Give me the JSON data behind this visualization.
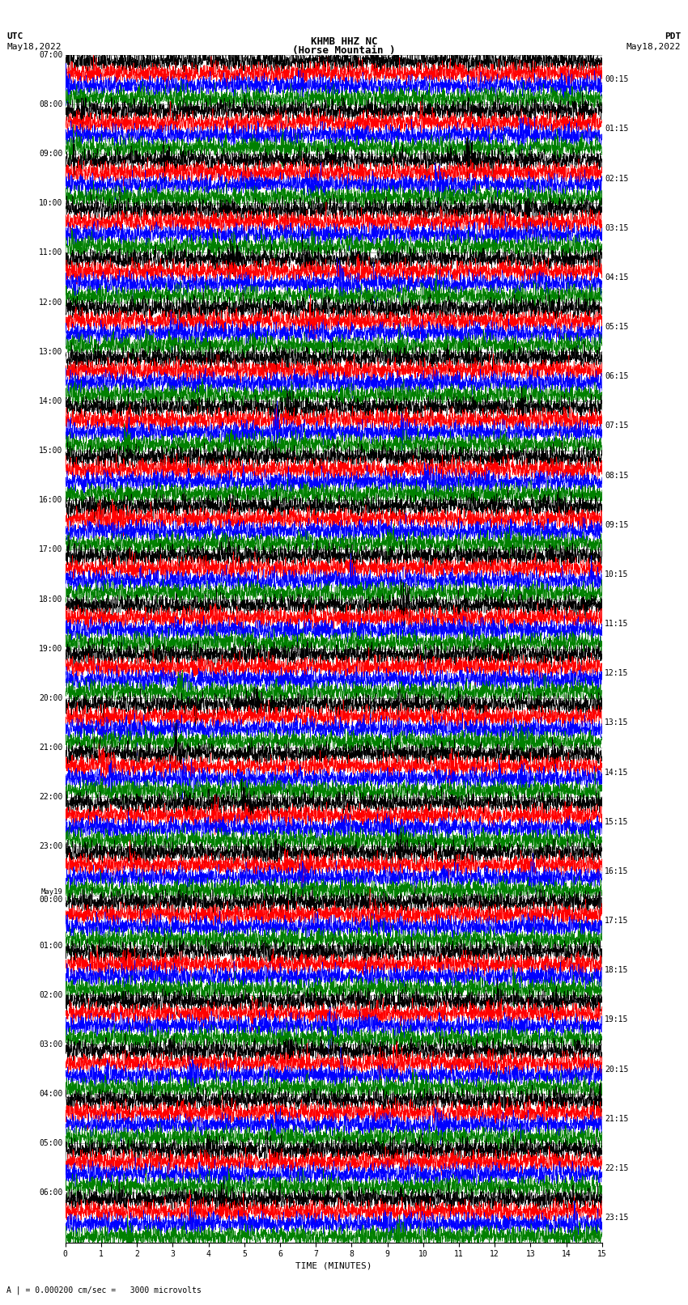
{
  "title_line1": "KHMB HHZ NC",
  "title_line2": "(Horse Mountain )",
  "title_scale": "| = 0.000200 cm/sec",
  "left_label_top": "UTC",
  "left_label_date": "May18,2022",
  "right_label_top": "PDT",
  "right_label_date": "May18,2022",
  "xlabel": "TIME (MINUTES)",
  "bottom_note": "A | = 0.000200 cm/sec =   3000 microvolts",
  "utc_labels": [
    "07:00",
    "08:00",
    "09:00",
    "10:00",
    "11:00",
    "12:00",
    "13:00",
    "14:00",
    "15:00",
    "16:00",
    "17:00",
    "18:00",
    "19:00",
    "20:00",
    "21:00",
    "22:00",
    "23:00",
    "May19\n00:00",
    "01:00",
    "02:00",
    "03:00",
    "04:00",
    "05:00",
    "06:00"
  ],
  "pdt_labels": [
    "00:15",
    "01:15",
    "02:15",
    "03:15",
    "04:15",
    "05:15",
    "06:15",
    "07:15",
    "08:15",
    "09:15",
    "10:15",
    "11:15",
    "12:15",
    "13:15",
    "14:15",
    "15:15",
    "16:15",
    "17:15",
    "18:15",
    "19:15",
    "20:15",
    "21:15",
    "22:15",
    "23:15"
  ],
  "colors": [
    "black",
    "red",
    "blue",
    "green"
  ],
  "bg_color": "white",
  "n_hours": 24,
  "traces_per_hour": 4,
  "n_samples": 3600,
  "amplitude": 0.38,
  "fig_width": 8.5,
  "fig_height": 16.13,
  "dpi": 100
}
